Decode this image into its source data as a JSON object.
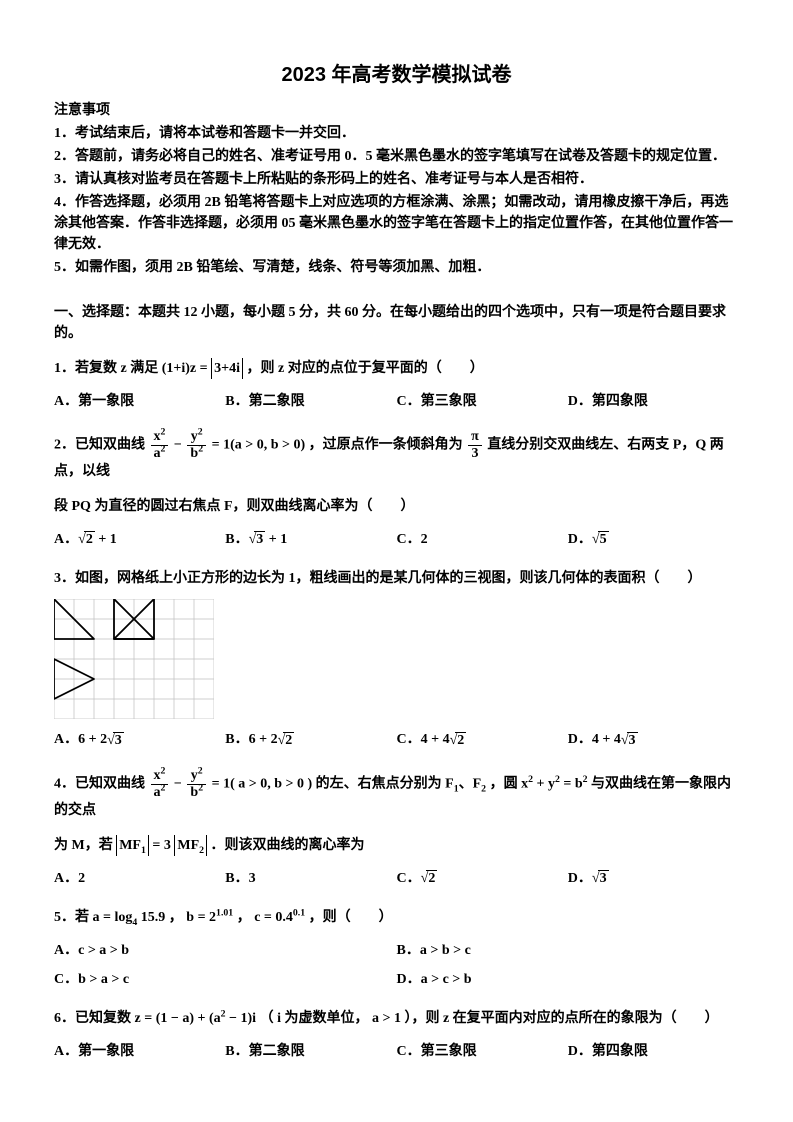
{
  "title": "2023 年高考数学模拟试卷",
  "notice": {
    "heading": "注意事项",
    "lines": [
      "1．考试结束后，请将本试卷和答题卡一并交回．",
      "2．答题前，请务必将自己的姓名、准考证号用 0．5 毫米黑色墨水的签字笔填写在试卷及答题卡的规定位置．",
      "3．请认真核对监考员在答题卡上所粘贴的条形码上的姓名、准考证号与本人是否相符．",
      "4．作答选择题，必须用 2B 铅笔将答题卡上对应选项的方框涂满、涂黑；如需改动，请用橡皮擦干净后，再选涂其他答案．作答非选择题，必须用 05 毫米黑色墨水的签字笔在答题卡上的指定位置作答，在其他位置作答一律无效．",
      "5．如需作图，须用 2B 铅笔绘、写清楚，线条、符号等须加黑、加粗．"
    ]
  },
  "section1_head": "一、选择题：本题共 12 小题，每小题 5 分，共 60 分。在每小题给出的四个选项中，只有一项是符合题目要求的。",
  "q1": {
    "prefix": "1．若复数 z 满足",
    "expr_lhs_open": "(1+i)",
    "expr_z": "z",
    "eq": "=",
    "expr_rhs": "3+4i",
    "suffix": "，则 z 对应的点位于复平面的（　　）",
    "opts": {
      "A": "A．第一象限",
      "B": "B．第二象限",
      "C": "C．第三象限",
      "D": "D．第四象限"
    }
  },
  "q2": {
    "prefix": "2．已知双曲线 ",
    "frac1_num": "x",
    "frac1_den": "a",
    "minus": " − ",
    "frac2_num": "y",
    "frac2_den": "b",
    "eq1_cond": " = 1(a > 0, b > 0) ，过原点作一条倾斜角为 ",
    "frac3_num": "π",
    "frac3_den": "3",
    "suffix1": " 直线分别交双曲线左、右两支 P，Q 两点，以线",
    "line2": "段 PQ 为直径的圆过右焦点 F，则双曲线离心率为（　　）",
    "opts": {
      "A_pre": "A．",
      "A_rad": "2",
      "A_post": " + 1",
      "B_pre": "B．",
      "B_rad": "3",
      "B_post": " + 1",
      "C": "C．2",
      "D_pre": "D．",
      "D_rad": "5"
    }
  },
  "q3": {
    "text": "3．如图，网格纸上小正方形的边长为 1，粗线画出的是某几何体的三视图，则该几何体的表面积（　　）",
    "fig": {
      "type": "three-view-grid",
      "grid_cell": 20,
      "cols": 8,
      "rows": 6,
      "grid_color": "#bfbfbf",
      "thick_color": "#000000",
      "thick_width": 1.8,
      "triangles": [
        {
          "pts": [
            [
              0,
              0
            ],
            [
              0,
              2
            ],
            [
              2,
              2
            ]
          ]
        },
        {
          "pts": [
            [
              3,
              0
            ],
            [
              3,
              2
            ],
            [
              5,
              2
            ]
          ]
        },
        {
          "pts": [
            [
              3,
              2
            ],
            [
              5,
              2
            ],
            [
              5,
              0
            ]
          ]
        },
        {
          "pts": [
            [
              0,
              3
            ],
            [
              2,
              4
            ],
            [
              0,
              5
            ]
          ]
        }
      ]
    },
    "opts": {
      "A_pre": "A．6 + 2",
      "A_rad": "3",
      "B_pre": "B．6 + 2",
      "B_rad": "2",
      "C_pre": "C．4 + 4",
      "C_rad": "2",
      "D_pre": "D．4 + 4",
      "D_rad": "3"
    }
  },
  "q4": {
    "prefix": "4．已知双曲线 ",
    "frac1_num": "x",
    "frac1_den": "a",
    "minus": " − ",
    "frac2_num": "y",
    "frac2_den": "b",
    "mid1": " = 1( a > 0, b > 0 ) 的左、右焦点分别为 F",
    "sub1": "1",
    "comma": "、F",
    "sub2": "2",
    "mid2": " ，圆 x",
    "sup_x": "2",
    "plus": " + y",
    "sup_y": "2",
    "eqb": " = b",
    "sup_b": "2",
    "suffix1": " 与双曲线在第一象限内的交点",
    "line2a": "为 M，若 ",
    "abs1_l": "MF",
    "abs1_sub": "1",
    "eq3": " = 3",
    "abs2_l": "MF",
    "abs2_sub": "2",
    "line2b": " ．则该双曲线的离心率为",
    "opts": {
      "A": "A．2",
      "B": "B．3",
      "C_pre": "C．",
      "C_rad": "2",
      "D_pre": "D．",
      "D_rad": "3"
    }
  },
  "q5": {
    "prefix": "5．若 a = log",
    "sub4": "4",
    "a_val": " 15.9 ， b = 2",
    "b_exp": "1.01",
    "mid": " ， c = 0.4",
    "c_exp": "0.1",
    "suffix": " ，则（　　）",
    "opts": {
      "A": "A．c > a > b",
      "B": "B．a > b > c",
      "C": "C．b > a > c",
      "D": "D．a > c > b"
    }
  },
  "q6": {
    "prefix": "6．已知复数 z = (1 − a) + (a",
    "sup": "2",
    "mid": " − 1)i （ i 为虚数单位， a > 1 ），则 z 在复平面内对应的点所在的象限为（　　）",
    "opts": {
      "A": "A．第一象限",
      "B": "B．第二象限",
      "C": "C．第三象限",
      "D": "D．第四象限"
    }
  },
  "style": {
    "body_font_size": 14,
    "title_font_size": 20,
    "text_color": "#000000",
    "background": "#ffffff"
  }
}
